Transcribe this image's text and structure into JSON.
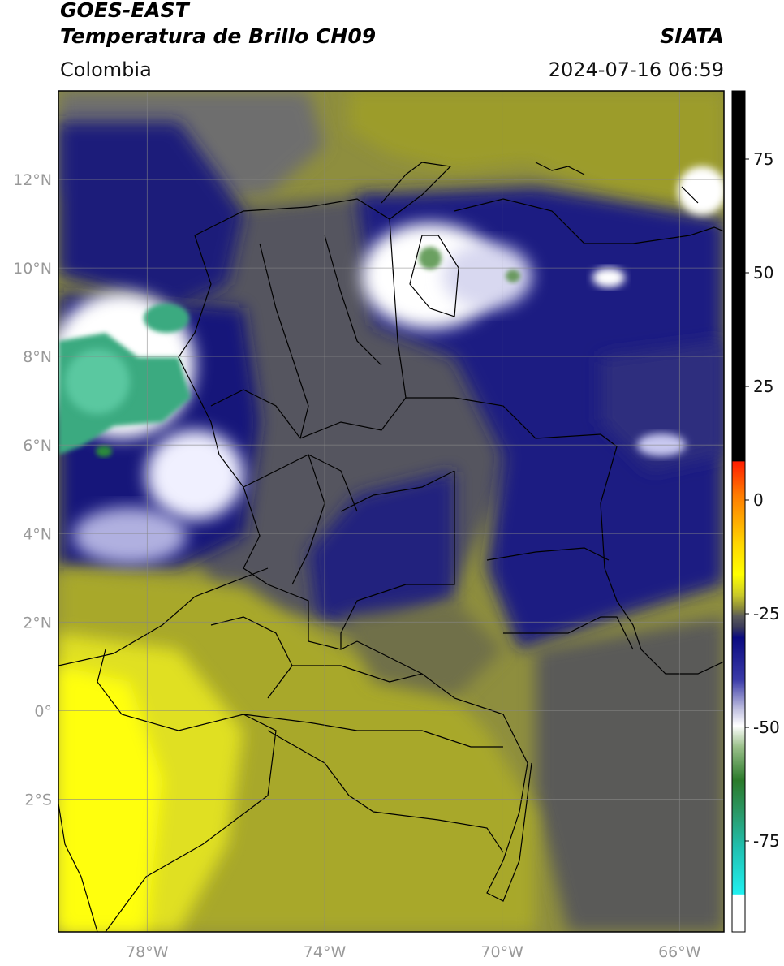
{
  "header": {
    "satellite": "GOES-EAST",
    "product": "Temperatura de Brillo CH09",
    "region": "Colombia",
    "agency": "SIATA",
    "timestamp": "2024-07-16 06:59"
  },
  "map": {
    "lon_range": [
      -80,
      -65
    ],
    "lat_range": [
      -5,
      14
    ],
    "lat_ticks": [
      {
        "value": 12,
        "label": "12°N"
      },
      {
        "value": 10,
        "label": "10°N"
      },
      {
        "value": 8,
        "label": "8°N"
      },
      {
        "value": 6,
        "label": "6°N"
      },
      {
        "value": 4,
        "label": "4°N"
      },
      {
        "value": 2,
        "label": "2°N"
      },
      {
        "value": 0,
        "label": "0°"
      },
      {
        "value": -2,
        "label": "2°S"
      }
    ],
    "lon_ticks": [
      {
        "value": -78,
        "label": "78°W"
      },
      {
        "value": -74,
        "label": "74°W"
      },
      {
        "value": -70,
        "label": "70°W"
      },
      {
        "value": -66,
        "label": "66°W"
      }
    ]
  },
  "colorbar": {
    "range": [
      -95,
      90
    ],
    "ticks": [
      {
        "value": 75,
        "label": "75"
      },
      {
        "value": 50,
        "label": "50"
      },
      {
        "value": 25,
        "label": "25"
      },
      {
        "value": 0,
        "label": "0"
      },
      {
        "value": -25,
        "label": "-25"
      },
      {
        "value": -50,
        "label": "-50"
      },
      {
        "value": -75,
        "label": "-75"
      }
    ],
    "colors": {
      "black": "#000000",
      "red": "#ff2000",
      "orange": "#ff9a00",
      "yellow": "#ffff00",
      "olive": "#9a9a20",
      "gray": "#555555",
      "navy": "#0a0a80",
      "white": "#ffffff",
      "green": "#2a8a3a",
      "cyan": "#20e0e0"
    }
  }
}
